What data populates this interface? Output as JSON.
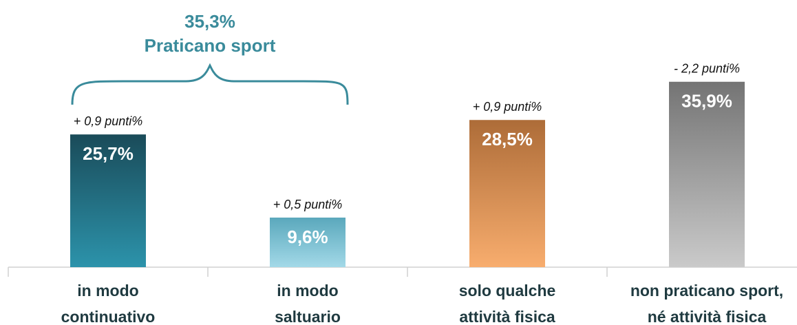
{
  "chart_data": {
    "type": "bar",
    "categories": [
      [
        "in modo",
        "continuativo"
      ],
      [
        "in modo",
        "saltuario"
      ],
      [
        "solo qualche",
        "attività fisica"
      ],
      [
        "non praticano sport,",
        "né attività fisica"
      ]
    ],
    "values": [
      25.7,
      9.6,
      28.5,
      35.9
    ],
    "value_labels": [
      "25,7%",
      "9,6%",
      "28,5%",
      "35,9%"
    ],
    "annotations": [
      "+ 0,9 punti%",
      "+ 0,5 punti%",
      "+ 0,9 punti%",
      "- 2,2 punti%"
    ],
    "colors": [
      [
        "#1a4b59",
        "#2c93ab"
      ],
      [
        "#5aa8bc",
        "#a3d9e8"
      ],
      [
        "#ad6c38",
        "#f8ad6e"
      ],
      [
        "#747474",
        "#cacaca"
      ]
    ],
    "group": {
      "value": 35.3,
      "value_label": "35,3%",
      "label": "Praticano sport",
      "color": "#3a8b9b"
    },
    "ylim": [
      0,
      50
    ]
  }
}
